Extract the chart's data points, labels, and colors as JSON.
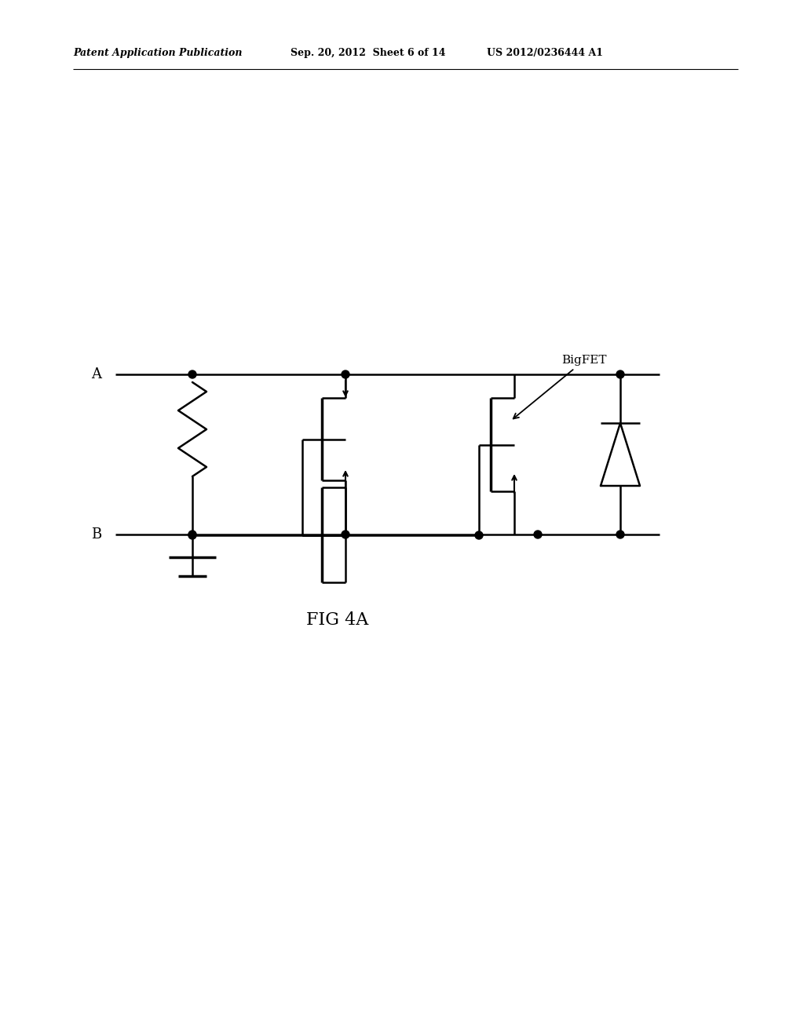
{
  "title": "FIG 4A",
  "header_left": "Patent Application Publication",
  "header_center": "Sep. 20, 2012  Sheet 6 of 14",
  "header_right": "US 2012/0236444 A1",
  "background_color": "#ffffff",
  "line_color": "#000000",
  "bigfet_label": "BigFET",
  "label_A": "A",
  "label_B": "B",
  "lw": 1.8
}
